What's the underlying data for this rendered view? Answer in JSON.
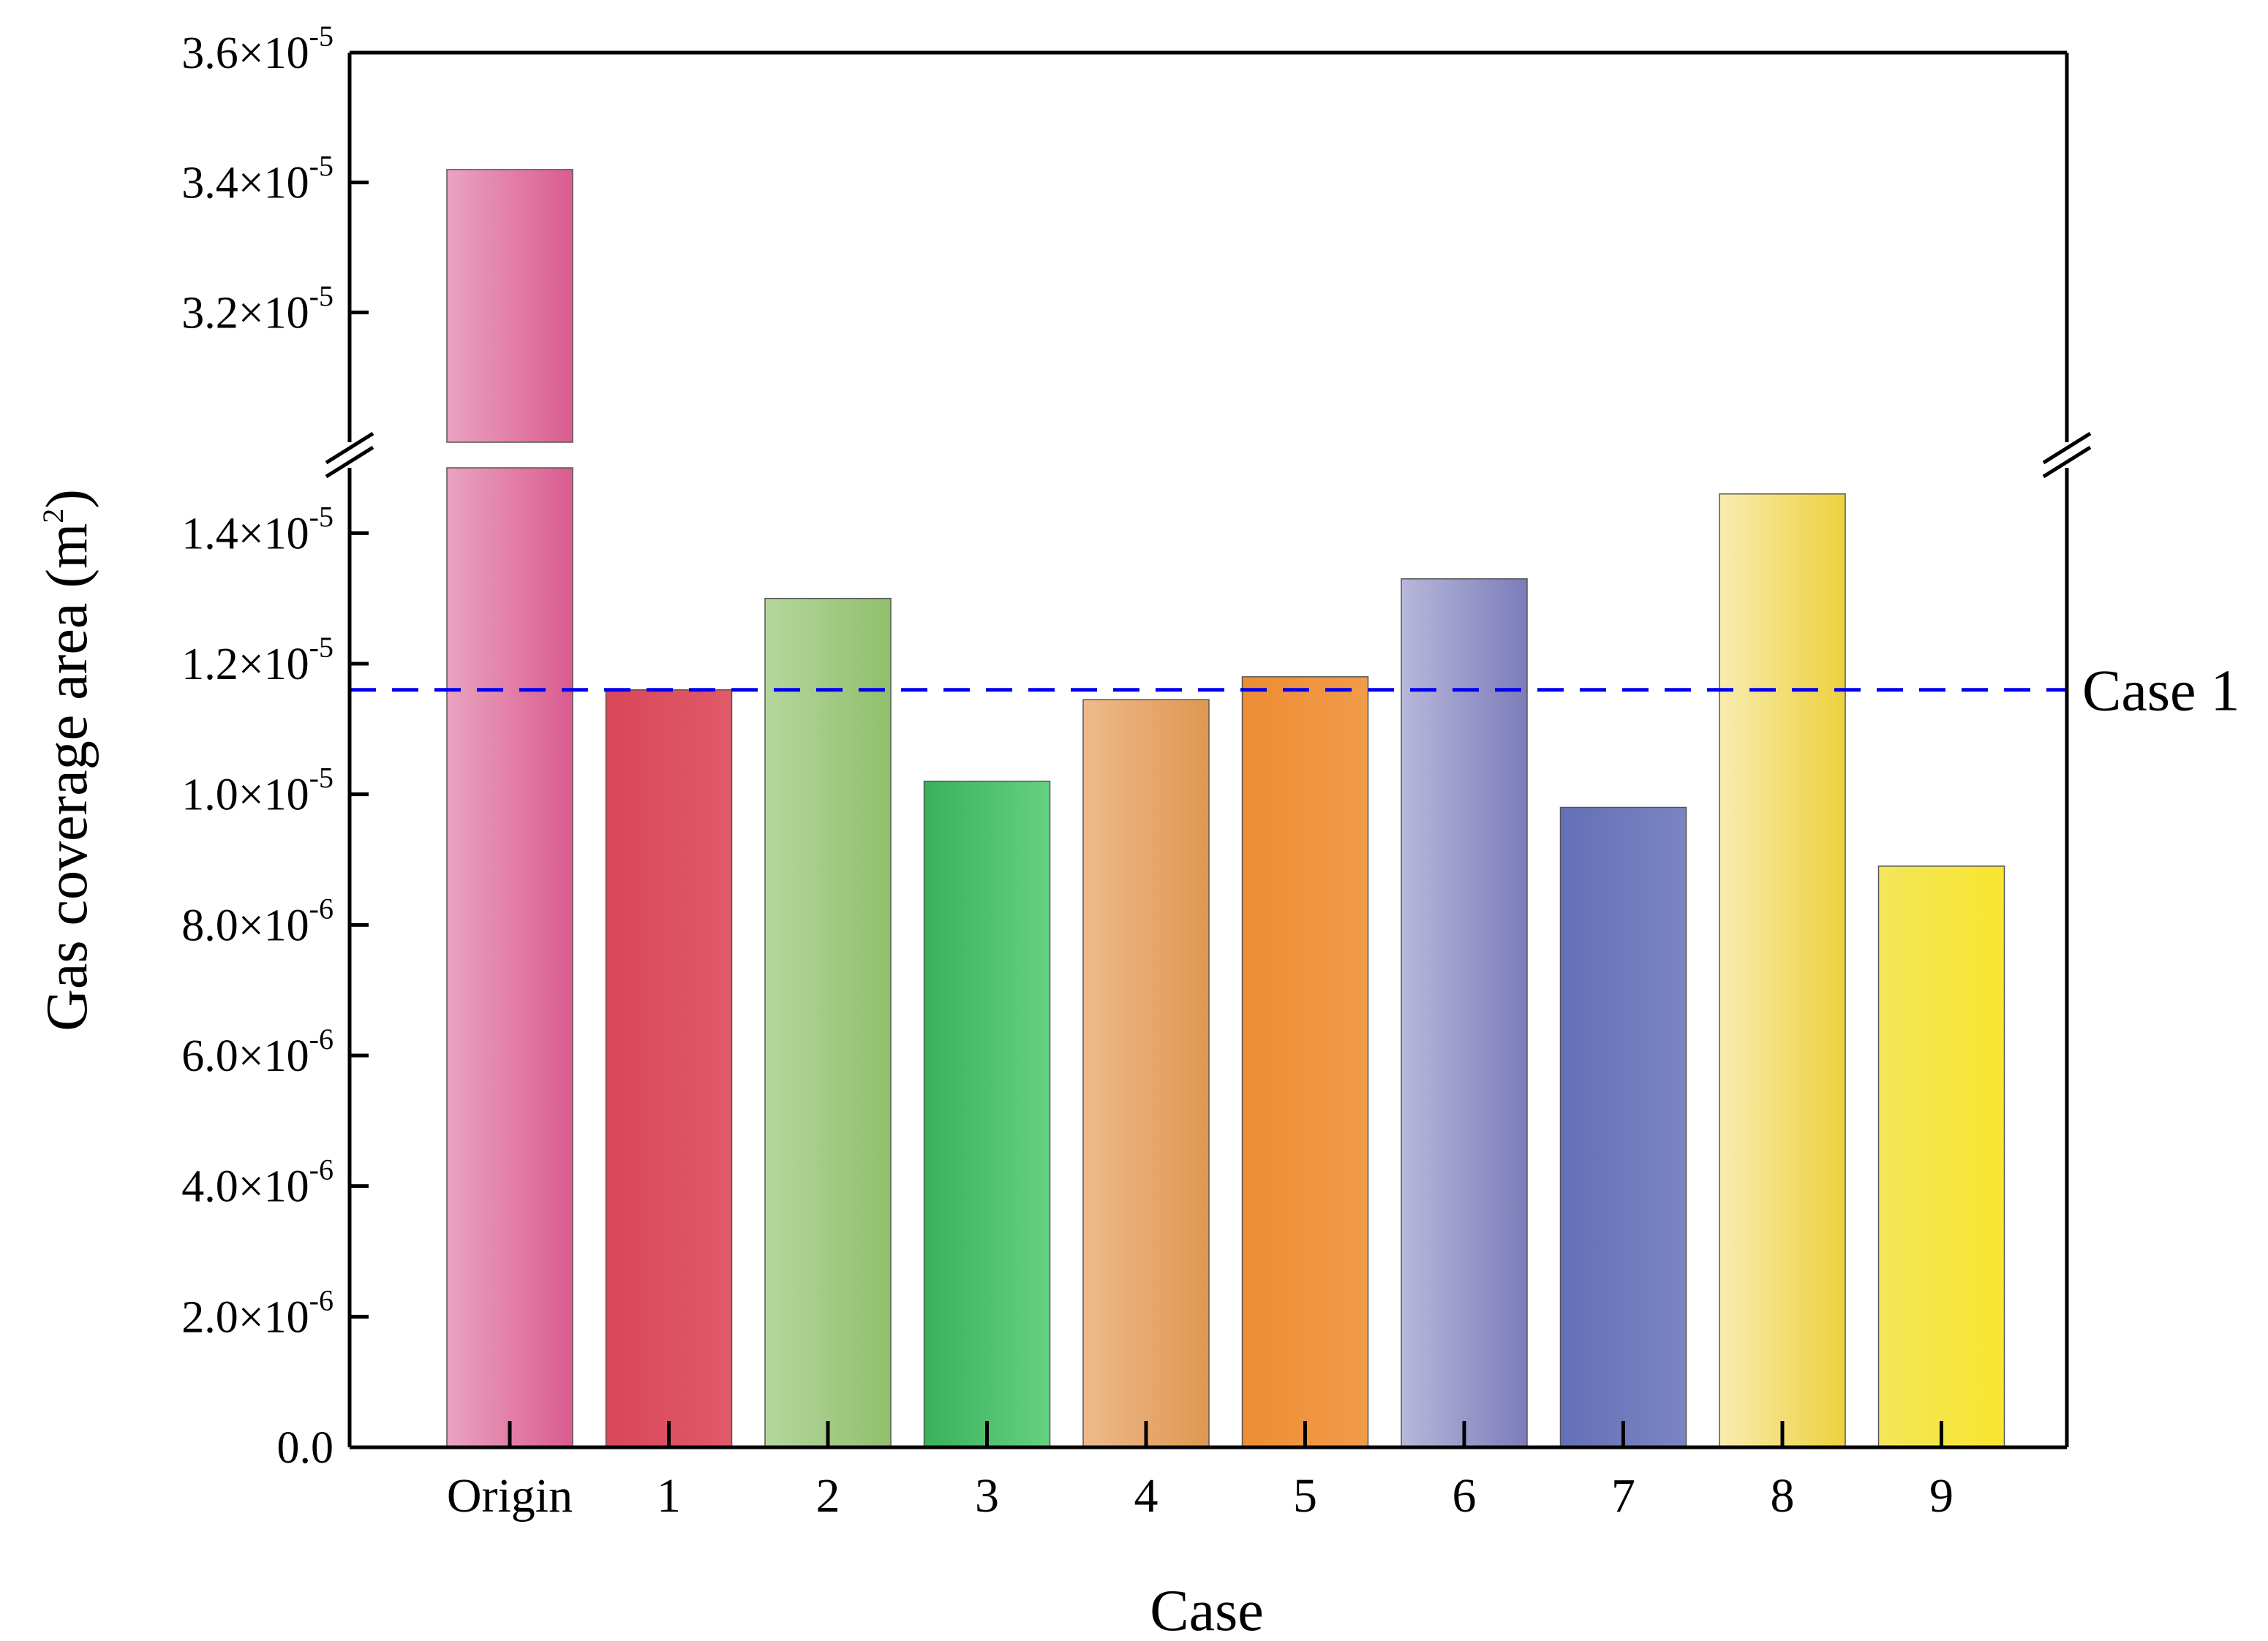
{
  "chart_data": {
    "type": "bar",
    "title": "",
    "xlabel": "Case",
    "ylabel": "Gas coverage area (m",
    "ylabel_sup": "2",
    "ylabel_close": ")",
    "categories": [
      "Origin",
      "1",
      "2",
      "3",
      "4",
      "5",
      "6",
      "7",
      "8",
      "9"
    ],
    "values": [
      3.42e-05,
      1.16e-05,
      1.3e-05,
      1.02e-05,
      1.145e-05,
      1.18e-05,
      1.33e-05,
      9.8e-06,
      1.46e-05,
      8.9e-06
    ],
    "colors": [
      [
        "#eaa4c1",
        "#da5b8f"
      ],
      [
        "#d9465a",
        "#e05a68"
      ],
      [
        "#b5d79d",
        "#90bf6c"
      ],
      [
        "#39b15b",
        "#66d081"
      ],
      [
        "#eeba8c",
        "#df9750"
      ],
      [
        "#ee8d33",
        "#f19b4a"
      ],
      [
        "#b8b8da",
        "#7c7cba"
      ],
      [
        "#6370b6",
        "#7b85c2"
      ],
      [
        "#f8ecb0",
        "#ecd13d"
      ],
      [
        "#f3e65a",
        "#f8e52e"
      ]
    ],
    "y_axis": {
      "break": [
        1.5e-05,
        3e-05
      ],
      "lower_range": [
        0,
        1.5e-05
      ],
      "upper_range": [
        3e-05,
        3.6e-05
      ],
      "ticks": [
        {
          "value": 0,
          "mantissa": "0.0",
          "exp": ""
        },
        {
          "value": 2e-06,
          "mantissa": "2.0×10",
          "exp": "-6"
        },
        {
          "value": 4e-06,
          "mantissa": "4.0×10",
          "exp": "-6"
        },
        {
          "value": 6e-06,
          "mantissa": "6.0×10",
          "exp": "-6"
        },
        {
          "value": 8e-06,
          "mantissa": "8.0×10",
          "exp": "-6"
        },
        {
          "value": 1e-05,
          "mantissa": "1.0×10",
          "exp": "-5"
        },
        {
          "value": 1.2e-05,
          "mantissa": "1.2×10",
          "exp": "-5"
        },
        {
          "value": 1.4e-05,
          "mantissa": "1.4×10",
          "exp": "-5"
        },
        {
          "value": 3.2e-05,
          "mantissa": "3.2×10",
          "exp": "-5"
        },
        {
          "value": 3.4e-05,
          "mantissa": "3.4×10",
          "exp": "-5"
        },
        {
          "value": 3.6e-05,
          "mantissa": "3.6×10",
          "exp": "-5"
        }
      ]
    },
    "reference_line": {
      "value": 1.16e-05,
      "label": "Case 1",
      "color": "#0000ee",
      "style": "dashed"
    }
  }
}
